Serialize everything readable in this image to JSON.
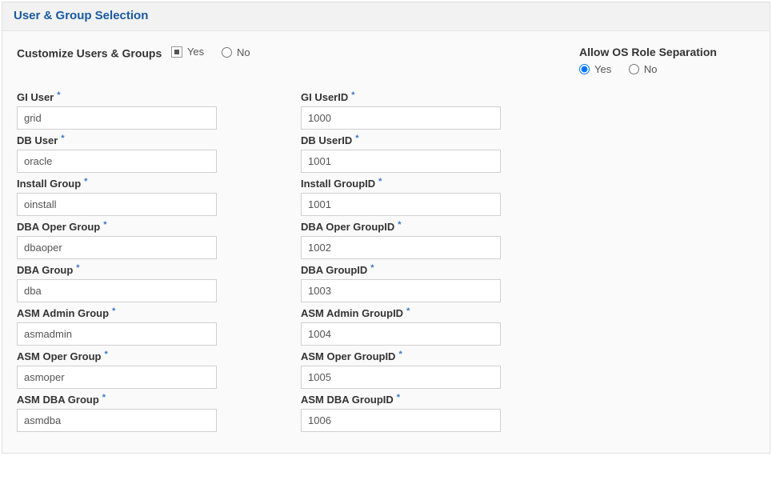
{
  "panel": {
    "title": "User & Group Selection"
  },
  "customize": {
    "label": "Customize Users & Groups",
    "yes": "Yes",
    "no": "No",
    "value": "yes"
  },
  "allowSep": {
    "label": "Allow OS Role Separation",
    "yes": "Yes",
    "no": "No",
    "value": "yes"
  },
  "left": [
    {
      "label": "GI User",
      "value": "grid",
      "name": "gi-user"
    },
    {
      "label": "DB User",
      "value": "oracle",
      "name": "db-user"
    },
    {
      "label": "Install Group",
      "value": "oinstall",
      "name": "install-group"
    },
    {
      "label": "DBA Oper Group",
      "value": "dbaoper",
      "name": "dba-oper-group"
    },
    {
      "label": "DBA Group",
      "value": "dba",
      "name": "dba-group"
    },
    {
      "label": "ASM Admin Group",
      "value": "asmadmin",
      "name": "asm-admin-group"
    },
    {
      "label": "ASM Oper Group",
      "value": "asmoper",
      "name": "asm-oper-group"
    },
    {
      "label": "ASM DBA Group",
      "value": "asmdba",
      "name": "asm-dba-group"
    }
  ],
  "right": [
    {
      "label": "GI UserID",
      "value": "1000",
      "name": "gi-userid"
    },
    {
      "label": "DB UserID",
      "value": "1001",
      "name": "db-userid"
    },
    {
      "label": "Install GroupID",
      "value": "1001",
      "name": "install-groupid"
    },
    {
      "label": "DBA Oper GroupID",
      "value": "1002",
      "name": "dba-oper-groupid"
    },
    {
      "label": "DBA GroupID",
      "value": "1003",
      "name": "dba-groupid"
    },
    {
      "label": "ASM Admin GroupID",
      "value": "1004",
      "name": "asm-admin-groupid"
    },
    {
      "label": "ASM Oper GroupID",
      "value": "1005",
      "name": "asm-oper-groupid"
    },
    {
      "label": "ASM DBA GroupID",
      "value": "1006",
      "name": "asm-dba-groupid"
    }
  ]
}
